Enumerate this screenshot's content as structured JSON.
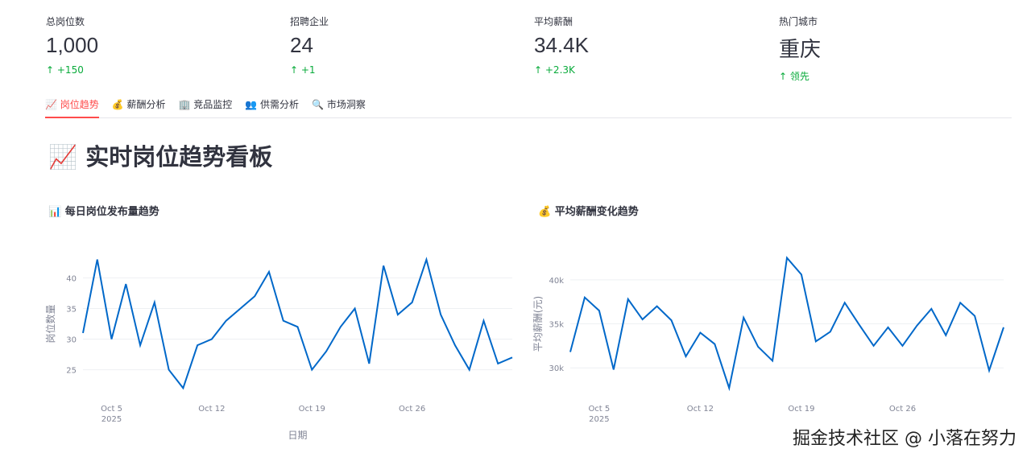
{
  "metrics": [
    {
      "icon": "📋",
      "label": "总岗位数",
      "value": "1,000",
      "delta": "+150"
    },
    {
      "icon": "🏢",
      "label": "招聘企业",
      "value": "24",
      "delta": "+1"
    },
    {
      "icon": "💰",
      "label": "平均薪酬",
      "value": "34.4K",
      "delta": "+2.3K"
    },
    {
      "icon": "🌟",
      "label": "热门城市",
      "value": "重庆",
      "delta": "领先"
    }
  ],
  "tabs": [
    {
      "label": "📈 岗位趋势"
    },
    {
      "label": "💰 薪酬分析"
    },
    {
      "label": "🏢 竞品监控"
    },
    {
      "label": "👥 供需分析"
    },
    {
      "label": "🔍 市场洞察"
    }
  ],
  "page_title": "📈 实时岗位趋势看板",
  "watermark": "掘金技术社区 @ 小落在努力",
  "colors": {
    "line": "#0068c9",
    "up": "#09ab3b",
    "accent": "#ff4b4b"
  },
  "chart_data": [
    {
      "type": "line",
      "title": "📊 每日岗位发布量趋势",
      "xlabel": "日期",
      "ylabel": "岗位数量",
      "x_start": "2025-10-03",
      "x_ticks": [
        "Oct 5",
        "Oct 12",
        "Oct 19",
        "Oct 26"
      ],
      "x_year": "2025",
      "yticks": [
        "25",
        "30",
        "35",
        "40"
      ],
      "ytick_values": [
        25,
        30,
        35,
        40
      ],
      "ylim": [
        21,
        44
      ],
      "values": [
        31,
        43,
        30,
        39,
        29,
        36,
        25,
        22,
        29,
        30,
        33,
        35,
        37,
        41,
        33,
        32,
        25,
        28,
        32,
        35,
        26,
        42,
        34,
        36,
        43,
        34,
        29,
        25,
        33,
        26,
        27
      ]
    },
    {
      "type": "line",
      "title": "💰 平均薪酬变化趋势",
      "xlabel": "",
      "ylabel": "平均薪酬(元)",
      "x_start": "2025-10-03",
      "x_ticks": [
        "Oct 5",
        "Oct 12",
        "Oct 19",
        "Oct 26"
      ],
      "x_year": "2025",
      "yticks": [
        "30k",
        "35k",
        "40k"
      ],
      "ytick_values": [
        30000,
        35000,
        40000
      ],
      "ylim": [
        27000,
        43000
      ],
      "values": [
        31800,
        38000,
        36500,
        29800,
        37800,
        35500,
        37000,
        35400,
        31300,
        34000,
        32700,
        27700,
        35700,
        32400,
        30800,
        42500,
        40600,
        33000,
        34100,
        37400,
        34900,
        32500,
        34600,
        32500,
        34800,
        36700,
        33700,
        37400,
        35900,
        29700,
        34600
      ]
    }
  ]
}
